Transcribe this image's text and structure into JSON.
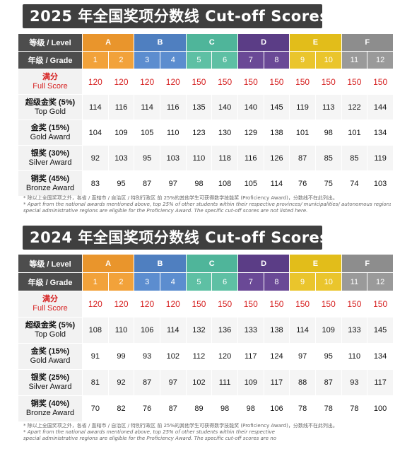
{
  "sections": [
    {
      "id": "2025",
      "title": "2025 年全国奖项分数线 Cut-off Scores",
      "level_label": "等级 / Level",
      "grade_label": "年级 / Grade",
      "levels": [
        "A",
        "B",
        "C",
        "D",
        "E",
        "F"
      ],
      "grades": [
        "1",
        "2",
        "3",
        "4",
        "5",
        "6",
        "7",
        "8",
        "9",
        "10",
        "11",
        "12"
      ],
      "rows": [
        {
          "cn": "满分",
          "en": "Full Score",
          "values": [
            120,
            120,
            120,
            120,
            150,
            150,
            150,
            150,
            150,
            150,
            150,
            150
          ]
        },
        {
          "cn": "超级金奖 (5%)",
          "en": "Top Gold",
          "values": [
            114,
            116,
            114,
            116,
            135,
            140,
            140,
            145,
            119,
            113,
            122,
            144
          ]
        },
        {
          "cn": "金奖 (15%)",
          "en": "Gold Award",
          "values": [
            104,
            109,
            105,
            110,
            123,
            130,
            129,
            138,
            101,
            98,
            101,
            134
          ]
        },
        {
          "cn": "银奖 (30%)",
          "en": "Silver Award",
          "values": [
            92,
            103,
            95,
            103,
            110,
            118,
            116,
            126,
            87,
            85,
            85,
            119
          ]
        },
        {
          "cn": "铜奖 (45%)",
          "en": "Bronze Award",
          "values": [
            83,
            95,
            87,
            97,
            98,
            108,
            105,
            114,
            76,
            75,
            74,
            103
          ]
        }
      ],
      "footnote": [
        "* 除以上全国奖项之外，各省 / 直辖市 / 自治区 / 特别行政区 前 25%的其他学生可获得数学技能奖 (Proficiency Award)，分数线不在此列出。",
        "* Apart from the national awards mentioned above, top 25% of other students within their respective provinces/ municipalities/ autonomous regions/",
        "special administrative regions are eligible for the Proficiency Award. The specific cut-off scores are not listed here."
      ]
    },
    {
      "id": "2024",
      "title": "2024 年全国奖项分数线 Cut-off Scores",
      "level_label": "等级 / Level",
      "grade_label": "年级 / Grade",
      "levels": [
        "A",
        "B",
        "C",
        "D",
        "E",
        "F"
      ],
      "grades": [
        "1",
        "2",
        "3",
        "4",
        "5",
        "6",
        "7",
        "8",
        "9",
        "10",
        "11",
        "12"
      ],
      "rows": [
        {
          "cn": "满分",
          "en": "Full Score",
          "values": [
            120,
            120,
            120,
            120,
            150,
            150,
            150,
            150,
            150,
            150,
            150,
            150
          ]
        },
        {
          "cn": "超级金奖 (5%)",
          "en": "Top Gold",
          "values": [
            108,
            110,
            106,
            114,
            132,
            136,
            133,
            138,
            114,
            109,
            133,
            145
          ]
        },
        {
          "cn": "金奖 (15%)",
          "en": "Gold Award",
          "values": [
            91,
            99,
            93,
            102,
            112,
            120,
            117,
            124,
            97,
            95,
            110,
            134
          ]
        },
        {
          "cn": "银奖 (25%)",
          "en": "Silver Award",
          "values": [
            81,
            92,
            87,
            97,
            102,
            111,
            109,
            117,
            88,
            87,
            93,
            117
          ]
        },
        {
          "cn": "铜奖 (40%)",
          "en": "Bronze Award",
          "values": [
            70,
            82,
            76,
            87,
            89,
            98,
            98,
            106,
            78,
            78,
            78,
            100
          ]
        }
      ],
      "footnote": [
        "* 除以上全国奖项之外，各省 / 直辖市 / 自治区 / 特别行政区 前 25%的其他学生可获得数学技能奖 (Proficiency Award)，分数线不在此列出。",
        "* Apart from the national awards mentioned above, top 25% of other students within their respective",
        "special administrative regions are eligible for the Proficiency Award. The specific cut-off scores are no"
      ]
    }
  ]
}
